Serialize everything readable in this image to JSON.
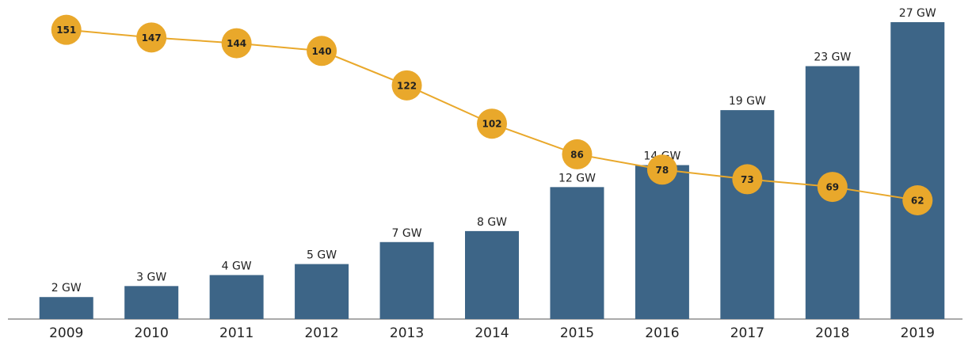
{
  "chart_data": {
    "type": "bar",
    "categories": [
      "2009",
      "2010",
      "2011",
      "2012",
      "2013",
      "2014",
      "2015",
      "2016",
      "2017",
      "2018",
      "2019"
    ],
    "series": [
      {
        "type": "bar",
        "color": "#3d6587",
        "values": [
          2,
          3,
          4,
          5,
          7,
          8,
          12,
          14,
          19,
          23,
          27
        ],
        "value_labels": [
          "2 GW",
          "3 GW",
          "4 GW",
          "5 GW",
          "7 GW",
          "8 GW",
          "12 GW",
          "14 GW",
          "19 GW",
          "23 GW",
          "27 GW"
        ]
      },
      {
        "type": "line",
        "axis": "y2",
        "color": "#e9a82b",
        "values": [
          151,
          147,
          144,
          140,
          122,
          102,
          86,
          78,
          73,
          69,
          62
        ]
      }
    ],
    "ylim": [
      0,
      27
    ],
    "y2lim": [
      0,
      155
    ]
  }
}
